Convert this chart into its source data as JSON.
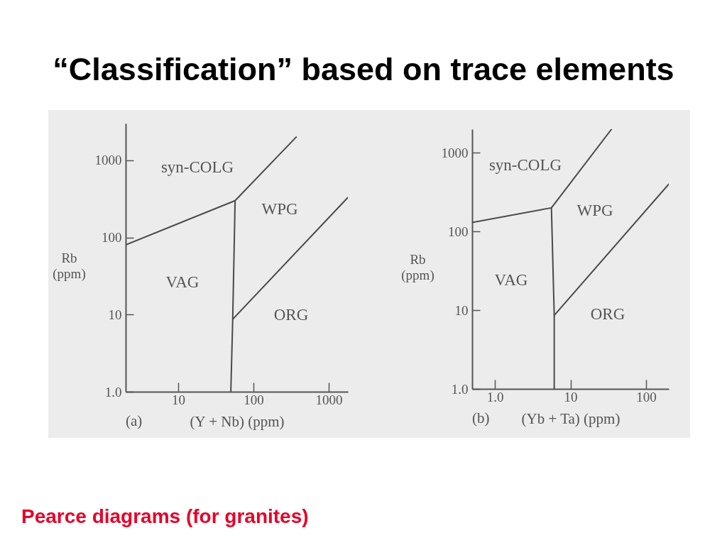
{
  "chart_data": [
    {
      "type": "line",
      "title": "“Classification” based on trace elements",
      "subtitle": "(a)",
      "xlabel": "(Y + Nb) (ppm)",
      "ylabel": "Rb (ppm)",
      "log": "xy",
      "grid": false,
      "xlim": [
        2,
        1800
      ],
      "ylim": [
        1,
        3000
      ],
      "xticks": [
        10,
        100,
        1000
      ],
      "yticks": [
        {
          "value": 1,
          "label": "1.0"
        },
        10,
        100,
        1000
      ],
      "series": [
        {
          "color": "#4a4a4a",
          "x": [
            2,
            57,
            370
          ],
          "values": [
            80,
            300,
            2000
          ]
        },
        {
          "color": "#4a4a4a",
          "x": [
            57,
            53,
            50
          ],
          "values": [
            300,
            8.7,
            1
          ]
        },
        {
          "color": "#4a4a4a",
          "x": [
            53,
            1800
          ],
          "values": [
            8.7,
            330
          ]
        }
      ],
      "annotations": [
        "syn-COLG",
        "VAG",
        "WPG",
        "ORG",
        "Pearce diagrams (for granites)"
      ]
    },
    {
      "type": "line",
      "subtitle": "(b)",
      "xlabel": "(Yb + Ta) (ppm)",
      "ylabel": "Rb (ppm)",
      "log": "xy",
      "grid": false,
      "xlim": [
        0.5,
        200
      ],
      "ylim": [
        1,
        2000
      ],
      "xticks": [
        {
          "value": 1,
          "label": "1.0"
        },
        10,
        100
      ],
      "yticks": [
        {
          "value": 1,
          "label": "1.0"
        },
        10,
        100,
        1000
      ],
      "series": [
        {
          "color": "#4a4a4a",
          "x": [
            0.5,
            5.6,
            35
          ],
          "values": [
            130,
            200,
            2000
          ]
        },
        {
          "color": "#4a4a4a",
          "x": [
            5.6,
            6.1,
            6.1
          ],
          "values": [
            200,
            8.6,
            1
          ]
        },
        {
          "color": "#4a4a4a",
          "x": [
            6.1,
            200
          ],
          "values": [
            8.6,
            400
          ]
        }
      ],
      "annotations": [
        "syn-COLG",
        "VAG",
        "WPG",
        "ORG"
      ]
    }
  ]
}
